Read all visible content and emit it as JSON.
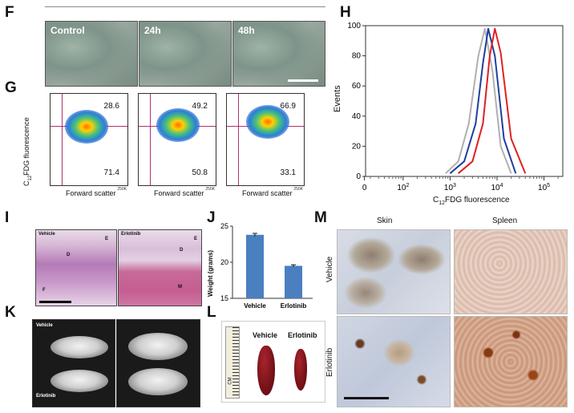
{
  "panels": {
    "F": {
      "letter": "F",
      "images": [
        {
          "label": "Control"
        },
        {
          "label": "24h"
        },
        {
          "label": "48h"
        }
      ]
    },
    "G": {
      "letter": "G",
      "ylabel": "C12FDG fluorescence",
      "xlabel": "Forward scatter",
      "x_tick_end": "250K",
      "plots": [
        {
          "upper": "28.6",
          "lower": "71.4"
        },
        {
          "upper": "49.2",
          "lower": "50.8"
        },
        {
          "upper": "66.9",
          "lower": "33.1"
        }
      ]
    },
    "H": {
      "letter": "H"
    },
    "I": {
      "letter": "I",
      "images": [
        {
          "label": "Vehicle",
          "tags": [
            "E",
            "D",
            "F"
          ]
        },
        {
          "label": "Erlotinib",
          "tags": [
            "E",
            "D",
            "M"
          ]
        }
      ]
    },
    "J": {
      "letter": "J"
    },
    "K": {
      "letter": "K",
      "labels": {
        "top": "Vehicle",
        "bottom": "Erlotinib"
      }
    },
    "L": {
      "letter": "L",
      "labels": {
        "left": "Vehicle",
        "right": "Erlotinib",
        "ruler": "CM"
      }
    },
    "M": {
      "letter": "M",
      "col_headers": [
        "Skin",
        "Spleen"
      ],
      "row_headers": [
        "Vehicle",
        "Erlotinib"
      ]
    }
  },
  "chart_data": [
    {
      "type": "line",
      "panel": "H",
      "ylabel": "Events",
      "xlabel": "C12FDG fluorescence",
      "x_scale": "log",
      "x_tick_labels": [
        "0",
        "10^2",
        "10^3",
        "10^4",
        "10^5"
      ],
      "y_ticks": [
        0,
        20,
        40,
        60,
        80,
        100
      ],
      "ylim": [
        0,
        100
      ],
      "series": [
        {
          "color": "#b0b0b0",
          "peak_x": 5500,
          "x": [
            800,
            1500,
            2500,
            4000,
            5500,
            8000,
            12000,
            20000
          ],
          "values": [
            2,
            10,
            35,
            80,
            98,
            70,
            20,
            2
          ]
        },
        {
          "color": "#1f3f9e",
          "peak_x": 6500,
          "x": [
            1000,
            2000,
            3500,
            5000,
            6500,
            9000,
            14000,
            25000
          ],
          "values": [
            2,
            10,
            35,
            75,
            98,
            80,
            25,
            2
          ]
        },
        {
          "color": "#e02020",
          "peak_x": 9000,
          "x": [
            1500,
            3000,
            5000,
            7000,
            9000,
            12000,
            20000,
            40000
          ],
          "values": [
            2,
            10,
            35,
            80,
            98,
            82,
            25,
            2
          ]
        }
      ]
    },
    {
      "type": "bar",
      "panel": "J",
      "ylabel": "Weight (grams)",
      "categories": [
        "Vehicle",
        "Erlotinib"
      ],
      "values": [
        23.8,
        19.5
      ],
      "error": [
        0.2,
        0.15
      ],
      "ylim": [
        15,
        25
      ],
      "y_ticks": [
        15,
        20,
        25
      ],
      "color": "#4a7fc0"
    }
  ]
}
